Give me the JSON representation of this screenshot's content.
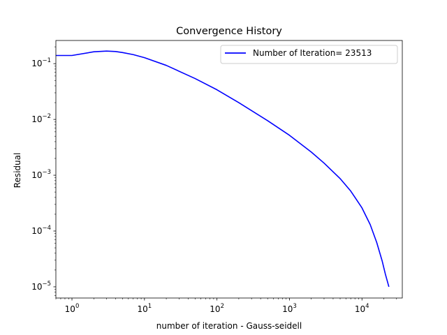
{
  "chart_data": {
    "type": "line",
    "title": "Convergence History",
    "xlabel": "number of iteration - Gauss-seidell",
    "ylabel": "Residual",
    "xscale": "log",
    "yscale": "log",
    "xlim": [
      0.6,
      36000
    ],
    "ylim": [
      6.3e-06,
      0.26
    ],
    "x_ticks": [
      {
        "value": 1,
        "base": "10",
        "exp": "0"
      },
      {
        "value": 10,
        "base": "10",
        "exp": "1"
      },
      {
        "value": 100,
        "base": "10",
        "exp": "2"
      },
      {
        "value": 1000,
        "base": "10",
        "exp": "3"
      },
      {
        "value": 10000,
        "base": "10",
        "exp": "4"
      }
    ],
    "y_ticks": [
      {
        "value": 0.1,
        "base": "10",
        "exp": "−1"
      },
      {
        "value": 0.01,
        "base": "10",
        "exp": "−2"
      },
      {
        "value": 0.001,
        "base": "10",
        "exp": "−3"
      },
      {
        "value": 0.0001,
        "base": "10",
        "exp": "−4"
      },
      {
        "value": 1e-05,
        "base": "10",
        "exp": "−5"
      }
    ],
    "legend_position": "upper right",
    "series": [
      {
        "name": "Number of Iteration= 23513",
        "color": "#0000ff",
        "x": [
          0.6,
          1,
          2,
          3,
          4,
          5,
          7,
          10,
          20,
          50,
          100,
          200,
          500,
          1000,
          2000,
          3000,
          5000,
          7000,
          10000,
          13000,
          16000,
          19000,
          21000,
          23513
        ],
        "y": [
          0.14,
          0.14,
          0.163,
          0.168,
          0.165,
          0.158,
          0.145,
          0.128,
          0.093,
          0.054,
          0.034,
          0.02,
          0.0095,
          0.0052,
          0.0026,
          0.00165,
          0.00087,
          0.00052,
          0.00026,
          0.00013,
          6.2e-05,
          2.9e-05,
          1.7e-05,
          1e-05
        ]
      }
    ],
    "grid": false
  }
}
